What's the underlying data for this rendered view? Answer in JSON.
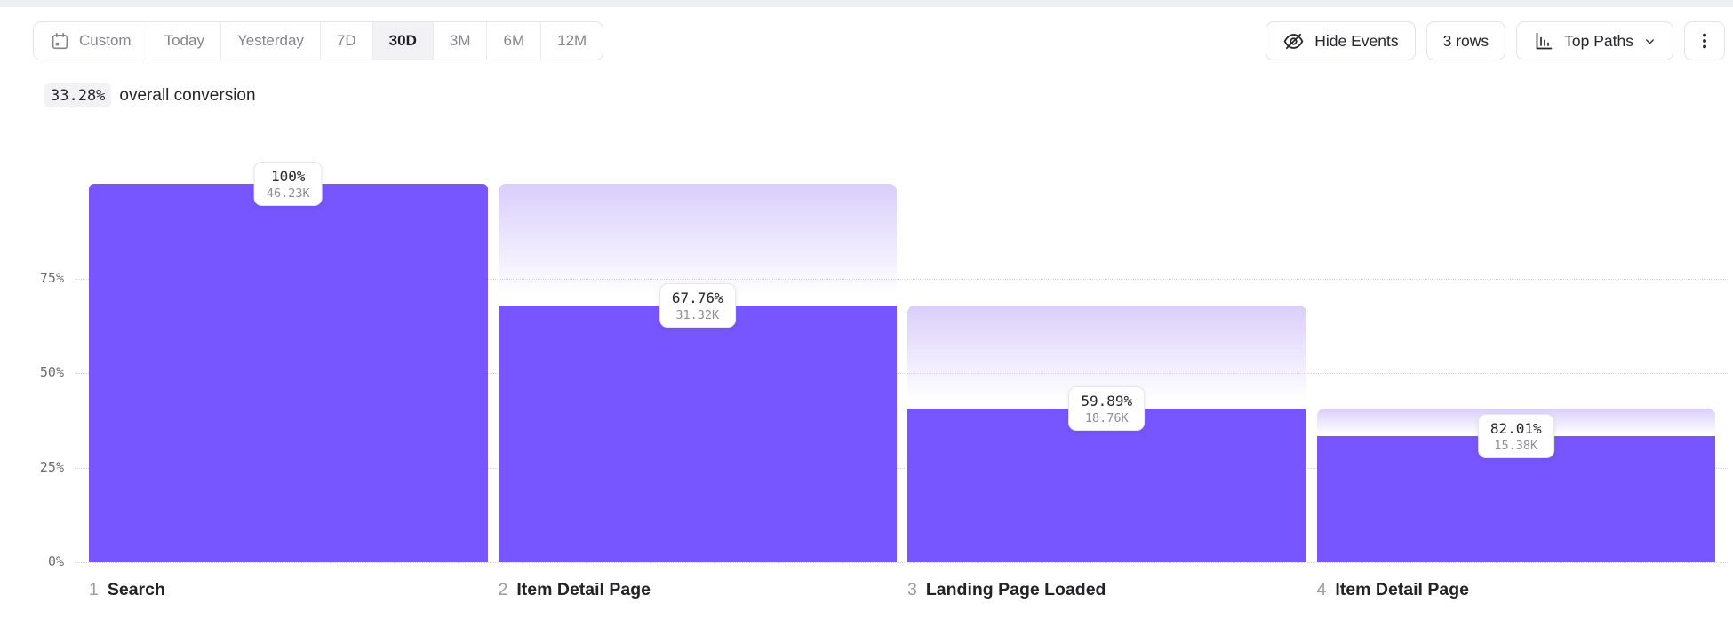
{
  "toolbar": {
    "date_ranges": [
      {
        "label": "Custom",
        "icon": "calendar",
        "selected": false
      },
      {
        "label": "Today",
        "selected": false
      },
      {
        "label": "Yesterday",
        "selected": false
      },
      {
        "label": "7D",
        "selected": false
      },
      {
        "label": "30D",
        "selected": true
      },
      {
        "label": "3M",
        "selected": false
      },
      {
        "label": "6M",
        "selected": false
      },
      {
        "label": "12M",
        "selected": false
      }
    ],
    "buttons": {
      "hide_events": {
        "label": "Hide Events",
        "icon": "eye-off-icon"
      },
      "rows": {
        "label": "3 rows"
      },
      "top_paths": {
        "label": "Top Paths",
        "icon": "bar-chart-icon",
        "dropdown_icon": "chevron-down-icon"
      },
      "menu": {
        "icon": "kebab-menu-icon"
      }
    }
  },
  "summary": {
    "value": "33.28%",
    "text": "overall conversion"
  },
  "chart_data": {
    "type": "funnel",
    "title": "33.28% overall conversion",
    "y_ticks": [
      "0%",
      "25%",
      "50%",
      "75%"
    ],
    "y_axis_meaning": "percent of first step",
    "overall_conversion": "33.28%",
    "steps": [
      {
        "index": 1,
        "name": "Search",
        "conversion_label": "100%",
        "count_label": "46.23K",
        "count": 46230,
        "percent_of_first": 100,
        "conversion_from_previous_pct": 100
      },
      {
        "index": 2,
        "name": "Item Detail Page",
        "conversion_label": "67.76%",
        "count_label": "31.32K",
        "count": 31320,
        "percent_of_first": 67.76,
        "conversion_from_previous_pct": 67.76
      },
      {
        "index": 3,
        "name": "Landing Page Loaded",
        "conversion_label": "59.89%",
        "count_label": "18.76K",
        "count": 18760,
        "percent_of_first": 40.58,
        "conversion_from_previous_pct": 59.89
      },
      {
        "index": 4,
        "name": "Item Detail Page",
        "conversion_label": "82.01%",
        "count_label": "15.38K",
        "count": 15380,
        "percent_of_first": 33.27,
        "conversion_from_previous_pct": 82.01
      }
    ]
  },
  "colors": {
    "bar": "#7856FF",
    "dropoff_gradient_top": "#D9CEFB",
    "text_dark": "#26262B",
    "text_gray": "#8F8F97",
    "border": "#E4E4E8",
    "chip_background": "#F2F2F4"
  }
}
